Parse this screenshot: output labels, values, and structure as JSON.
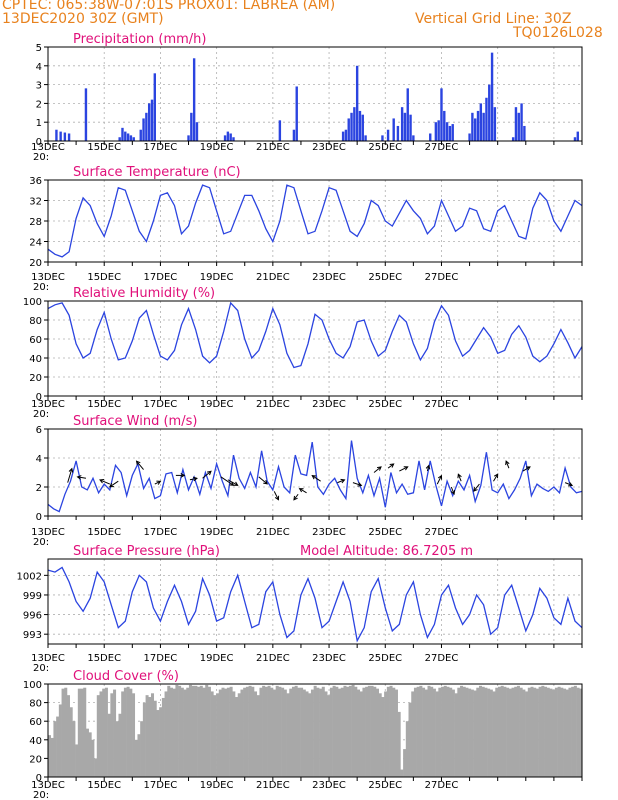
{
  "header": {
    "line1": "CPTEC:   065:38W-07:01S   PROX01: LABREA (AM)",
    "line2": "13DEC2020 30Z (GMT)",
    "grid_note": "Vertical Grid Line: 30Z",
    "code": "TQ0126L028"
  },
  "colors": {
    "header": "#e8821e",
    "title": "#e0107a",
    "line": "#2b44e0",
    "cloud": "#a8a8a8",
    "grid": "#b0b0b0"
  },
  "x_labels": [
    "13DEC",
    "15DEC",
    "17DEC",
    "19DEC",
    "21DEC",
    "23DEC",
    "25DEC",
    "27DEC"
  ],
  "x_stub": "20:",
  "chart_data": [
    {
      "type": "bar",
      "title": "Precipitation  (mm/h)",
      "ylim": [
        0,
        5
      ],
      "yticks": [
        "0",
        "1",
        "2",
        "3",
        "4",
        "5"
      ],
      "bars": [
        [
          0.3,
          0.6
        ],
        [
          0.45,
          0.5
        ],
        [
          0.6,
          0.45
        ],
        [
          0.75,
          0.4
        ],
        [
          1.35,
          2.8
        ],
        [
          2.55,
          0.2
        ],
        [
          2.65,
          0.7
        ],
        [
          2.75,
          0.5
        ],
        [
          2.85,
          0.4
        ],
        [
          2.95,
          0.3
        ],
        [
          3.05,
          0.2
        ],
        [
          3.3,
          0.6
        ],
        [
          3.4,
          1.2
        ],
        [
          3.5,
          1.5
        ],
        [
          3.6,
          2.0
        ],
        [
          3.7,
          2.2
        ],
        [
          3.8,
          3.6
        ],
        [
          5.0,
          0.3
        ],
        [
          5.1,
          1.5
        ],
        [
          5.2,
          4.4
        ],
        [
          5.3,
          1.0
        ],
        [
          6.3,
          0.3
        ],
        [
          6.4,
          0.5
        ],
        [
          6.5,
          0.4
        ],
        [
          6.6,
          0.2
        ],
        [
          8.25,
          1.1
        ],
        [
          8.75,
          0.6
        ],
        [
          8.85,
          2.9
        ],
        [
          10.5,
          0.5
        ],
        [
          10.6,
          0.6
        ],
        [
          10.7,
          1.2
        ],
        [
          10.8,
          1.5
        ],
        [
          10.9,
          1.8
        ],
        [
          11.0,
          4.0
        ],
        [
          11.1,
          1.6
        ],
        [
          11.2,
          1.4
        ],
        [
          11.3,
          0.3
        ],
        [
          11.9,
          0.3
        ],
        [
          12.1,
          0.6
        ],
        [
          12.3,
          1.2
        ],
        [
          12.45,
          0.8
        ],
        [
          12.6,
          1.8
        ],
        [
          12.7,
          1.5
        ],
        [
          12.8,
          2.8
        ],
        [
          12.9,
          1.4
        ],
        [
          13.0,
          0.3
        ],
        [
          13.6,
          0.4
        ],
        [
          13.8,
          1.0
        ],
        [
          13.9,
          1.1
        ],
        [
          14.0,
          2.8
        ],
        [
          14.1,
          1.6
        ],
        [
          14.2,
          1.0
        ],
        [
          14.3,
          0.8
        ],
        [
          14.4,
          0.9
        ],
        [
          15.0,
          0.4
        ],
        [
          15.1,
          1.5
        ],
        [
          15.2,
          1.2
        ],
        [
          15.3,
          1.6
        ],
        [
          15.4,
          2.0
        ],
        [
          15.5,
          1.5
        ],
        [
          15.6,
          2.3
        ],
        [
          15.7,
          3.0
        ],
        [
          15.8,
          4.7
        ],
        [
          15.9,
          1.8
        ],
        [
          16.55,
          0.2
        ],
        [
          16.65,
          1.8
        ],
        [
          16.75,
          1.5
        ],
        [
          16.85,
          2.0
        ],
        [
          16.95,
          0.8
        ],
        [
          18.75,
          0.2
        ],
        [
          18.85,
          0.5
        ]
      ]
    },
    {
      "type": "line",
      "title": "Surface Temperature  (nC)",
      "ylim": [
        20,
        36
      ],
      "yticks": [
        "20",
        "24",
        "28",
        "32",
        "36"
      ],
      "x": [
        0,
        0.25,
        0.5,
        0.75,
        1,
        1.25,
        1.5,
        1.75,
        2,
        2.25,
        2.5,
        2.75,
        3,
        3.25,
        3.5,
        3.75,
        4,
        4.25,
        4.5,
        4.75,
        5,
        5.25,
        5.5,
        5.75,
        6,
        6.25,
        6.5,
        6.75,
        7,
        7.25,
        7.5,
        7.75,
        8,
        8.25,
        8.5,
        8.75,
        9,
        9.25,
        9.5,
        9.75,
        10,
        10.25,
        10.5,
        10.75,
        11,
        11.25,
        11.5,
        11.75,
        12,
        12.25,
        12.5,
        12.75,
        13,
        13.25,
        13.5,
        13.75,
        14,
        14.25,
        14.5,
        14.75,
        15,
        15.25,
        15.5,
        15.75,
        16,
        16.25,
        16.5,
        16.75,
        17,
        17.25,
        17.5,
        17.75,
        18,
        18.25,
        18.5,
        18.75,
        19
      ],
      "y": [
        22.5,
        21.5,
        21,
        22,
        28.5,
        32.5,
        31,
        27.5,
        25,
        29,
        34.5,
        34,
        30,
        26,
        24,
        28,
        33,
        33.5,
        31,
        25.5,
        27,
        31.5,
        35,
        34.5,
        30,
        25.5,
        26,
        29.5,
        33,
        33,
        30,
        26.5,
        24,
        28,
        35,
        34.5,
        30,
        25.5,
        26,
        30,
        34.5,
        34,
        30,
        26,
        25,
        27.5,
        32,
        31,
        28,
        27,
        29.5,
        32,
        30,
        28.5,
        25.5,
        27,
        32,
        29,
        26,
        27,
        30.5,
        30,
        26.5,
        26,
        30,
        31,
        28,
        25,
        24.5,
        30.5,
        33.5,
        32,
        28,
        26,
        29,
        32,
        31
      ]
    },
    {
      "type": "line",
      "title": "Relative Humidity  (%)",
      "ylim": [
        0,
        100
      ],
      "yticks": [
        "0",
        "20",
        "40",
        "60",
        "80",
        "100"
      ],
      "x": [
        0,
        0.25,
        0.5,
        0.75,
        1,
        1.25,
        1.5,
        1.75,
        2,
        2.25,
        2.5,
        2.75,
        3,
        3.25,
        3.5,
        3.75,
        4,
        4.25,
        4.5,
        4.75,
        5,
        5.25,
        5.5,
        5.75,
        6,
        6.25,
        6.5,
        6.75,
        7,
        7.25,
        7.5,
        7.75,
        8,
        8.25,
        8.5,
        8.75,
        9,
        9.25,
        9.5,
        9.75,
        10,
        10.25,
        10.5,
        10.75,
        11,
        11.25,
        11.5,
        11.75,
        12,
        12.25,
        12.5,
        12.75,
        13,
        13.25,
        13.5,
        13.75,
        14,
        14.25,
        14.5,
        14.75,
        15,
        15.25,
        15.5,
        15.75,
        16,
        16.25,
        16.5,
        16.75,
        17,
        17.25,
        17.5,
        17.75,
        18,
        18.25,
        18.5,
        18.75,
        19
      ],
      "y": [
        92,
        96,
        98,
        85,
        55,
        40,
        45,
        70,
        88,
        60,
        38,
        40,
        58,
        82,
        90,
        65,
        42,
        38,
        48,
        75,
        92,
        70,
        42,
        35,
        42,
        68,
        98,
        90,
        60,
        40,
        48,
        68,
        92,
        75,
        45,
        30,
        32,
        55,
        86,
        80,
        60,
        45,
        40,
        52,
        78,
        80,
        58,
        42,
        48,
        68,
        85,
        78,
        55,
        38,
        50,
        78,
        95,
        85,
        58,
        42,
        48,
        60,
        72,
        62,
        45,
        48,
        65,
        74,
        62,
        42,
        36,
        42,
        55,
        70,
        56,
        40,
        52
      ]
    },
    {
      "type": "line",
      "title": "Surface Wind  (m/s)",
      "ylim": [
        0,
        6
      ],
      "yticks": [
        "0",
        "2",
        "4",
        "6"
      ],
      "x": [
        0,
        0.2,
        0.4,
        0.6,
        0.8,
        1,
        1.2,
        1.4,
        1.6,
        1.8,
        2,
        2.2,
        2.4,
        2.6,
        2.8,
        3,
        3.2,
        3.4,
        3.6,
        3.8,
        4,
        4.2,
        4.4,
        4.6,
        4.8,
        5,
        5.2,
        5.4,
        5.6,
        5.8,
        6,
        6.2,
        6.4,
        6.6,
        6.8,
        7,
        7.2,
        7.4,
        7.6,
        7.8,
        8,
        8.2,
        8.4,
        8.6,
        8.8,
        9,
        9.2,
        9.4,
        9.6,
        9.8,
        10,
        10.2,
        10.4,
        10.6,
        10.8,
        11,
        11.2,
        11.4,
        11.6,
        11.8,
        12,
        12.2,
        12.4,
        12.6,
        12.8,
        13,
        13.2,
        13.4,
        13.6,
        13.8,
        14,
        14.2,
        14.4,
        14.6,
        14.8,
        15,
        15.2,
        15.4,
        15.6,
        15.8,
        16,
        16.2,
        16.4,
        16.6,
        16.8,
        17,
        17.2,
        17.4,
        17.6,
        17.8,
        18,
        18.2,
        18.4,
        18.6,
        18.8,
        19
      ],
      "y": [
        0.8,
        0.5,
        0.3,
        1.5,
        2.4,
        3.8,
        2.0,
        1.8,
        2.6,
        1.6,
        2.2,
        1.8,
        3.5,
        3.0,
        1.4,
        2.8,
        3.6,
        1.9,
        2.6,
        1.2,
        1.4,
        2.9,
        3.0,
        1.6,
        3.2,
        1.8,
        2.7,
        1.5,
        3.0,
        1.9,
        3.6,
        2.4,
        1.4,
        4.2,
        2.6,
        1.9,
        3.0,
        2.0,
        4.5,
        2.4,
        1.8,
        3.4,
        2.0,
        1.6,
        4.2,
        2.9,
        2.8,
        5.1,
        2.0,
        1.5,
        2.2,
        2.6,
        1.8,
        1.2,
        5.2,
        2.6,
        1.6,
        2.8,
        1.4,
        2.6,
        0.6,
        3.0,
        1.6,
        2.2,
        1.5,
        1.6,
        3.8,
        1.8,
        3.8,
        2.1,
        0.7,
        2.4,
        1.4,
        2.4,
        1.8,
        2.8,
        1.0,
        2.1,
        4.4,
        1.8,
        1.6,
        2.2,
        1.2,
        1.8,
        2.6,
        3.8,
        1.4,
        2.2,
        1.9,
        1.7,
        2.0,
        1.6,
        3.3,
        2.0,
        1.6,
        1.7
      ],
      "arrows": [
        [
          0.7,
          2.3,
          0.3,
          1.0
        ],
        [
          1.35,
          2.6,
          -0.6,
          0.1
        ],
        [
          2.2,
          2.2,
          -0.7,
          0.3
        ],
        [
          2.5,
          2.4,
          -0.6,
          -0.4
        ],
        [
          3.4,
          3.2,
          -0.5,
          0.6
        ],
        [
          3.8,
          2.2,
          0.4,
          0.2
        ],
        [
          4.55,
          2.8,
          0.6,
          0
        ],
        [
          5.05,
          2.5,
          0.5,
          0.1
        ],
        [
          5.5,
          2.6,
          0.6,
          0.5
        ],
        [
          6.15,
          2.7,
          0.9,
          -0.6
        ],
        [
          6.4,
          2.5,
          0.7,
          -0.4
        ],
        [
          7.5,
          2.7,
          0.6,
          -0.5
        ],
        [
          8.05,
          1.7,
          0.3,
          -0.6
        ],
        [
          8.9,
          1.5,
          -0.3,
          -0.4
        ],
        [
          9.2,
          1.6,
          -0.5,
          0.3
        ],
        [
          9.7,
          2.4,
          -0.6,
          0.4
        ],
        [
          10.3,
          2.3,
          0.5,
          0.2
        ],
        [
          10.85,
          2.3,
          0.6,
          -0.2
        ],
        [
          11.6,
          3.0,
          0.5,
          0.4
        ],
        [
          12.1,
          3.3,
          0.4,
          0.3
        ],
        [
          12.5,
          3.1,
          0.6,
          0.3
        ],
        [
          13.5,
          3.1,
          0.1,
          0.4
        ],
        [
          13.85,
          2.2,
          0.3,
          0.6
        ],
        [
          14.35,
          2.0,
          0.2,
          -0.5
        ],
        [
          14.7,
          2.4,
          -0.2,
          0.5
        ],
        [
          15.35,
          2.2,
          -0.4,
          -0.5
        ],
        [
          15.85,
          2.4,
          0.3,
          0.5
        ],
        [
          16.4,
          3.3,
          -0.2,
          0.5
        ],
        [
          16.9,
          3.1,
          0.5,
          0.3
        ],
        [
          18.4,
          2.3,
          0.5,
          -0.2
        ]
      ]
    },
    {
      "type": "line",
      "title": "Surface Pressure  (hPa)",
      "annotation": "Model Altitude: 86.7205  m",
      "ylim": [
        991.5,
        1004.5
      ],
      "yticks": [
        "993",
        "996",
        "999",
        "1002"
      ],
      "x": [
        0,
        0.25,
        0.5,
        0.75,
        1,
        1.25,
        1.5,
        1.75,
        2,
        2.25,
        2.5,
        2.75,
        3,
        3.25,
        3.5,
        3.75,
        4,
        4.25,
        4.5,
        4.75,
        5,
        5.25,
        5.5,
        5.75,
        6,
        6.25,
        6.5,
        6.75,
        7,
        7.25,
        7.5,
        7.75,
        8,
        8.25,
        8.5,
        8.75,
        9,
        9.25,
        9.5,
        9.75,
        10,
        10.25,
        10.5,
        10.75,
        11,
        11.25,
        11.5,
        11.75,
        12,
        12.25,
        12.5,
        12.75,
        13,
        13.25,
        13.5,
        13.75,
        14,
        14.25,
        14.5,
        14.75,
        15,
        15.25,
        15.5,
        15.75,
        16,
        16.25,
        16.5,
        16.75,
        17,
        17.25,
        17.5,
        17.75,
        18,
        18.25,
        18.5,
        18.75,
        19
      ],
      "y": [
        1002.8,
        1002.5,
        1003.2,
        1001,
        998,
        996.5,
        998.5,
        1002.5,
        1001,
        997.5,
        994,
        995,
        999.5,
        1002,
        1001,
        997,
        995,
        998,
        1000.5,
        998,
        994.5,
        996.5,
        1001.5,
        999,
        995,
        995.5,
        999.5,
        1002,
        998,
        994,
        994.5,
        999.5,
        1001,
        996,
        992.5,
        993.5,
        999,
        1001.5,
        998.5,
        994,
        995,
        998,
        1001,
        998,
        992,
        994,
        999.5,
        1001.5,
        997,
        993.5,
        994.5,
        999,
        1001,
        996,
        992.5,
        994.5,
        999,
        1000.5,
        997,
        994.5,
        996,
        999,
        997.5,
        993,
        994,
        999,
        1000.5,
        997,
        993.5,
        996,
        1000,
        998.5,
        995.5,
        994.5,
        998.5,
        995,
        994
      ]
    },
    {
      "type": "bar",
      "title": "Cloud Cover  (%)",
      "ylim": [
        0,
        100
      ],
      "yticks": [
        "0",
        "20",
        "40",
        "60",
        "80",
        "100"
      ],
      "values": [
        45,
        42,
        60,
        65,
        78,
        95,
        96,
        88,
        75,
        60,
        35,
        95,
        95,
        96,
        52,
        48,
        40,
        20,
        88,
        92,
        95,
        96,
        68,
        90,
        94,
        60,
        68,
        92,
        96,
        97,
        95,
        90,
        40,
        46,
        60,
        80,
        88,
        86,
        90,
        82,
        72,
        75,
        85,
        92,
        98,
        96,
        95,
        99,
        98,
        96,
        94,
        96,
        99,
        98,
        98,
        97,
        98,
        96,
        99,
        97,
        92,
        88,
        90,
        94,
        96,
        95,
        96,
        97,
        92,
        86,
        90,
        94,
        96,
        97,
        98,
        97,
        92,
        88,
        96,
        98,
        97,
        98,
        96,
        94,
        98,
        97,
        96,
        94,
        90,
        95,
        97,
        98,
        96,
        96,
        94,
        92,
        90,
        94,
        98,
        96,
        95,
        97,
        92,
        88,
        96,
        98,
        97,
        95,
        96,
        98,
        97,
        98,
        99,
        97,
        94,
        92,
        96,
        97,
        98,
        98,
        97,
        95,
        90,
        86,
        92,
        97,
        98,
        96,
        94,
        70,
        8,
        30,
        60,
        80,
        92,
        96,
        97,
        98,
        96,
        94,
        98,
        97,
        95,
        92,
        96,
        97,
        98,
        97,
        96,
        94,
        90,
        96,
        98,
        97,
        96,
        95,
        94,
        93,
        96,
        98,
        97,
        96,
        95,
        94,
        92,
        96,
        97,
        98,
        97,
        96,
        95,
        96,
        97,
        98,
        96,
        94,
        92,
        96,
        97,
        96,
        95,
        97,
        98,
        97,
        96,
        95,
        94,
        96,
        97,
        96,
        95,
        94,
        96,
        97,
        98,
        96,
        95
      ]
    }
  ]
}
